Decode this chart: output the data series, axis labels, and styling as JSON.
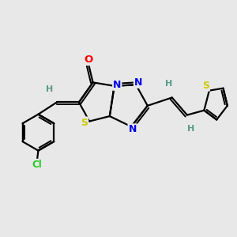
{
  "background_color": "#e8e8e8",
  "bond_color": "#000000",
  "atom_colors": {
    "O": "#ff0000",
    "N": "#0000ee",
    "S": "#cccc00",
    "Cl": "#22cc22",
    "C": "#000000",
    "H": "#5a9a8a"
  },
  "figsize": [
    3.0,
    3.0
  ],
  "dpi": 100
}
